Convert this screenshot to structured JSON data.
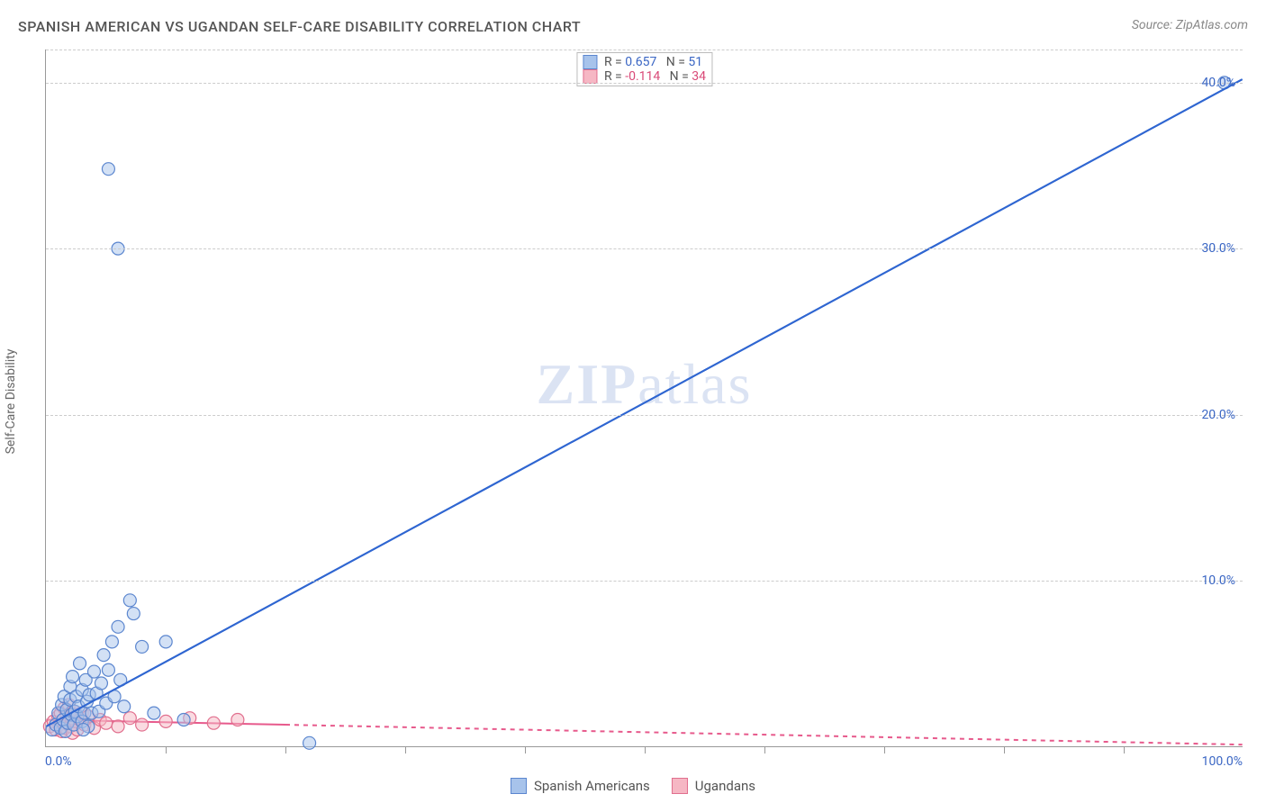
{
  "title": "SPANISH AMERICAN VS UGANDAN SELF-CARE DISABILITY CORRELATION CHART",
  "source": "Source: ZipAtlas.com",
  "ylabel": "Self-Care Disability",
  "watermark": {
    "bold": "ZIP",
    "light": "atlas"
  },
  "chart": {
    "type": "scatter",
    "background_color": "#ffffff",
    "grid_color": "#cccccc",
    "axis_color": "#999999",
    "xlim": [
      0,
      100
    ],
    "ylim": [
      0,
      42
    ],
    "ytick_values": [
      10,
      20,
      30,
      40
    ],
    "ytick_labels": [
      "10.0%",
      "20.0%",
      "30.0%",
      "40.0%"
    ],
    "ytick_color": "#3a66c4",
    "ytick_fontsize": 14,
    "xtick_labels": {
      "left": "0.0%",
      "right": "100.0%",
      "color": "#3a66c4",
      "fontsize": 14
    },
    "vtick_positions": [
      10,
      20,
      30,
      40,
      50,
      60,
      70,
      80,
      90
    ],
    "label_fontsize": 14,
    "label_color": "#666666",
    "point_radius": 7,
    "point_stroke_width": 1.2,
    "series": [
      {
        "name": "Spanish Americans",
        "fill": "#a7c3eb",
        "stroke": "#5b86cf",
        "fill_opacity": 0.5,
        "R": "0.657",
        "N": "51",
        "stat_color": "#3a66c4",
        "line": {
          "x1": 0,
          "y1": 1.2,
          "x2": 100,
          "y2": 40.2,
          "color": "#2f66d1",
          "width": 2,
          "dash": "none"
        },
        "points": [
          [
            0.5,
            1.0
          ],
          [
            0.8,
            1.3
          ],
          [
            1.0,
            2.0
          ],
          [
            1.2,
            1.1
          ],
          [
            1.3,
            2.5
          ],
          [
            1.4,
            1.6
          ],
          [
            1.5,
            3.0
          ],
          [
            1.6,
            0.9
          ],
          [
            1.7,
            2.2
          ],
          [
            1.8,
            1.4
          ],
          [
            2.0,
            2.8
          ],
          [
            2.0,
            3.6
          ],
          [
            2.1,
            1.9
          ],
          [
            2.2,
            4.2
          ],
          [
            2.3,
            1.3
          ],
          [
            2.4,
            2.1
          ],
          [
            2.5,
            3.0
          ],
          [
            2.6,
            1.8
          ],
          [
            2.7,
            2.4
          ],
          [
            2.8,
            5.0
          ],
          [
            3.0,
            1.5
          ],
          [
            3.0,
            3.4
          ],
          [
            3.2,
            2.0
          ],
          [
            3.3,
            4.0
          ],
          [
            3.4,
            2.7
          ],
          [
            3.5,
            1.2
          ],
          [
            3.6,
            3.1
          ],
          [
            3.8,
            2.0
          ],
          [
            4.0,
            4.5
          ],
          [
            4.2,
            3.2
          ],
          [
            4.4,
            2.1
          ],
          [
            4.6,
            3.8
          ],
          [
            4.8,
            5.5
          ],
          [
            5.0,
            2.6
          ],
          [
            5.2,
            4.6
          ],
          [
            5.5,
            6.3
          ],
          [
            5.7,
            3.0
          ],
          [
            6.0,
            7.2
          ],
          [
            6.2,
            4.0
          ],
          [
            6.5,
            2.4
          ],
          [
            7.0,
            8.8
          ],
          [
            7.3,
            8.0
          ],
          [
            8.0,
            6.0
          ],
          [
            9.0,
            2.0
          ],
          [
            10.0,
            6.3
          ],
          [
            11.5,
            1.6
          ],
          [
            5.2,
            34.8
          ],
          [
            6.0,
            30.0
          ],
          [
            22.0,
            0.2
          ],
          [
            98.5,
            40.0
          ],
          [
            3.1,
            1.0
          ]
        ]
      },
      {
        "name": "Ugandans",
        "fill": "#f6b7c4",
        "stroke": "#e16f8e",
        "fill_opacity": 0.5,
        "R": "-0.114",
        "N": "34",
        "stat_color": "#d94a78",
        "line": {
          "x1": 0,
          "y1": 1.6,
          "x2": 100,
          "y2": 0.1,
          "color": "#e75a8c",
          "width": 2,
          "dash": "5,5",
          "solid_until": 20
        },
        "points": [
          [
            0.3,
            1.2
          ],
          [
            0.6,
            1.5
          ],
          [
            0.8,
            1.0
          ],
          [
            1.0,
            1.8
          ],
          [
            1.1,
            1.3
          ],
          [
            1.2,
            2.0
          ],
          [
            1.3,
            0.9
          ],
          [
            1.4,
            1.6
          ],
          [
            1.5,
            2.3
          ],
          [
            1.6,
            1.1
          ],
          [
            1.7,
            1.9
          ],
          [
            1.8,
            1.4
          ],
          [
            1.9,
            2.5
          ],
          [
            2.0,
            1.2
          ],
          [
            2.1,
            1.7
          ],
          [
            2.2,
            0.8
          ],
          [
            2.3,
            2.1
          ],
          [
            2.4,
            1.5
          ],
          [
            2.5,
            1.9
          ],
          [
            2.6,
            1.0
          ],
          [
            2.8,
            1.6
          ],
          [
            3.0,
            2.0
          ],
          [
            3.2,
            1.3
          ],
          [
            3.5,
            1.8
          ],
          [
            4.0,
            1.1
          ],
          [
            4.5,
            1.6
          ],
          [
            5.0,
            1.4
          ],
          [
            6.0,
            1.2
          ],
          [
            7.0,
            1.7
          ],
          [
            8.0,
            1.3
          ],
          [
            10.0,
            1.5
          ],
          [
            12.0,
            1.7
          ],
          [
            14.0,
            1.4
          ],
          [
            16.0,
            1.6
          ]
        ]
      }
    ]
  },
  "stats_legend": {
    "R_label": "R",
    "N_label": "N",
    "border_color": "#bbbbbb",
    "fontsize": 14,
    "label_color": "#555555"
  },
  "bottom_legend": {
    "items": [
      {
        "label": "Spanish Americans",
        "fill": "#a7c3eb",
        "stroke": "#5b86cf"
      },
      {
        "label": "Ugandans",
        "fill": "#f6b7c4",
        "stroke": "#e16f8e"
      }
    ],
    "fontsize": 15,
    "color": "#555555"
  }
}
